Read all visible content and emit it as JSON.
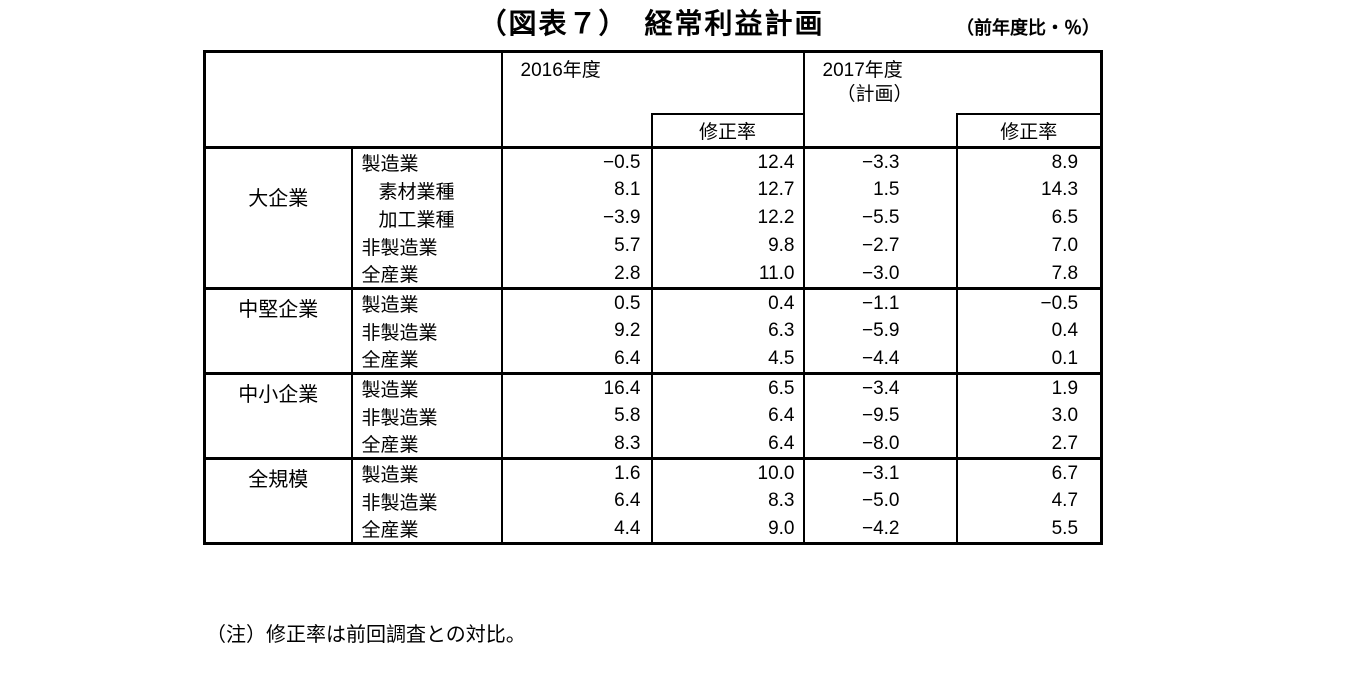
{
  "title": "（図表７）　経常利益計画",
  "unit_note": "（前年度比・％）",
  "footnote": "（注）修正率は前回調査との対比。",
  "header": {
    "fy2016": "2016年度",
    "fy2017_line1": "2017年度",
    "fy2017_line2": "（計画）",
    "revision": "修正率"
  },
  "chart_data": {
    "type": "table",
    "title": "経常利益計画",
    "unit": "前年度比・％",
    "column_keys": [
      "fy2016",
      "fy2016_revision",
      "fy2017_plan",
      "fy2017_plan_revision"
    ],
    "column_labels": [
      "2016年度",
      "修正率",
      "2017年度（計画）",
      "修正率"
    ],
    "groups": [
      {
        "label": "大企業",
        "rows": [
          {
            "industry": "製造業",
            "indent": false,
            "values": [
              -0.5,
              12.4,
              -3.3,
              8.9
            ]
          },
          {
            "industry": "素材業種",
            "indent": true,
            "values": [
              8.1,
              12.7,
              1.5,
              14.3
            ]
          },
          {
            "industry": "加工業種",
            "indent": true,
            "values": [
              -3.9,
              12.2,
              -5.5,
              6.5
            ]
          },
          {
            "industry": "非製造業",
            "indent": false,
            "values": [
              5.7,
              9.8,
              -2.7,
              7.0
            ]
          },
          {
            "industry": "全産業",
            "indent": false,
            "values": [
              2.8,
              11.0,
              -3.0,
              7.8
            ]
          }
        ]
      },
      {
        "label": "中堅企業",
        "rows": [
          {
            "industry": "製造業",
            "indent": false,
            "values": [
              0.5,
              0.4,
              -1.1,
              -0.5
            ]
          },
          {
            "industry": "非製造業",
            "indent": false,
            "values": [
              9.2,
              6.3,
              -5.9,
              0.4
            ]
          },
          {
            "industry": "全産業",
            "indent": false,
            "values": [
              6.4,
              4.5,
              -4.4,
              0.1
            ]
          }
        ]
      },
      {
        "label": "中小企業",
        "rows": [
          {
            "industry": "製造業",
            "indent": false,
            "values": [
              16.4,
              6.5,
              -3.4,
              1.9
            ]
          },
          {
            "industry": "非製造業",
            "indent": false,
            "values": [
              5.8,
              6.4,
              -9.5,
              3.0
            ]
          },
          {
            "industry": "全産業",
            "indent": false,
            "values": [
              8.3,
              6.4,
              -8.0,
              2.7
            ]
          }
        ]
      },
      {
        "label": "全規模",
        "rows": [
          {
            "industry": "製造業",
            "indent": false,
            "values": [
              1.6,
              10.0,
              -3.1,
              6.7
            ]
          },
          {
            "industry": "非製造業",
            "indent": false,
            "values": [
              6.4,
              8.3,
              -5.0,
              4.7
            ]
          },
          {
            "industry": "全産業",
            "indent": false,
            "values": [
              4.4,
              9.0,
              -4.2,
              5.5
            ]
          }
        ]
      }
    ]
  }
}
